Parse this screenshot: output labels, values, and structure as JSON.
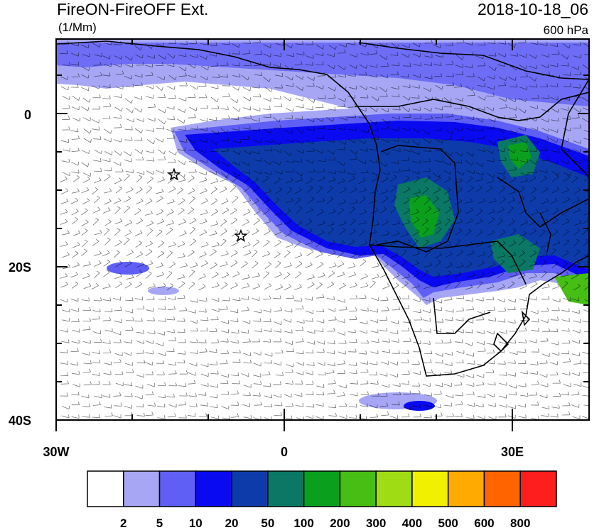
{
  "title_left": "FireON-FireOFF Ext.",
  "title_right": "2018-10-18_06",
  "units": "(1/Mm)",
  "level": "600 hPa",
  "y_axis": [
    "0",
    "20S",
    "40S"
  ],
  "x_axis": [
    "30W",
    "0",
    "30E"
  ],
  "colorbar": {
    "colors": [
      "#ffffff",
      "#a6a6f5",
      "#5f5ff5",
      "#0a0af0",
      "#0d3caa",
      "#0a7864",
      "#0aa01e",
      "#46be14",
      "#a0dc14",
      "#f0f000",
      "#ffaa00",
      "#ff6400",
      "#ff1e1e"
    ],
    "labels": [
      "2",
      "5",
      "10",
      "20",
      "50",
      "100",
      "200",
      "300",
      "400",
      "500",
      "600",
      "800"
    ]
  },
  "markers": [
    {
      "name": "station-star-1",
      "lon": -14.5,
      "lat": -8.0
    },
    {
      "name": "station-star-2",
      "lon": -5.7,
      "lat": -16.0
    }
  ]
}
